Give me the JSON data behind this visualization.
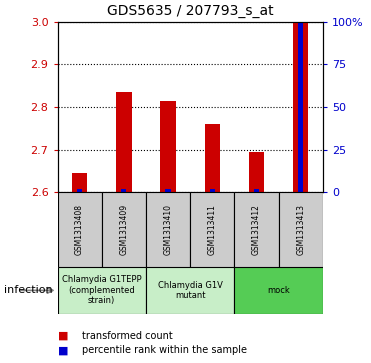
{
  "title": "GDS5635 / 207793_s_at",
  "samples": [
    "GSM1313408",
    "GSM1313409",
    "GSM1313410",
    "GSM1313411",
    "GSM1313412",
    "GSM1313413"
  ],
  "transformed_counts": [
    2.645,
    2.835,
    2.815,
    2.76,
    2.695,
    3.0
  ],
  "percentile_ranks": [
    2,
    2,
    2,
    2,
    2,
    99
  ],
  "ylim": [
    2.6,
    3.0
  ],
  "yticks": [
    2.6,
    2.7,
    2.8,
    2.9,
    3.0
  ],
  "right_yticks": [
    0,
    25,
    50,
    75,
    100
  ],
  "right_ytick_labels": [
    "0",
    "25",
    "50",
    "75",
    "100%"
  ],
  "group_defs": [
    {
      "indices": [
        0,
        1
      ],
      "label": "Chlamydia G1TEPP\n(complemented\nstrain)",
      "color": "#c8eec8"
    },
    {
      "indices": [
        2,
        3
      ],
      "label": "Chlamydia G1V\nmutant",
      "color": "#c8eec8"
    },
    {
      "indices": [
        4,
        5
      ],
      "label": "mock",
      "color": "#55cc55"
    }
  ],
  "infection_label": "infection",
  "bar_color": "#cc0000",
  "percentile_color": "#0000cc",
  "bar_width": 0.35,
  "pct_bar_width": 0.12,
  "background_color": "#ffffff",
  "ylabel_color": "#cc0000",
  "right_ylabel_color": "#0000cc",
  "sample_cell_color": "#cccccc",
  "legend_items": [
    {
      "label": "transformed count",
      "color": "#cc0000"
    },
    {
      "label": "percentile rank within the sample",
      "color": "#0000cc"
    }
  ]
}
